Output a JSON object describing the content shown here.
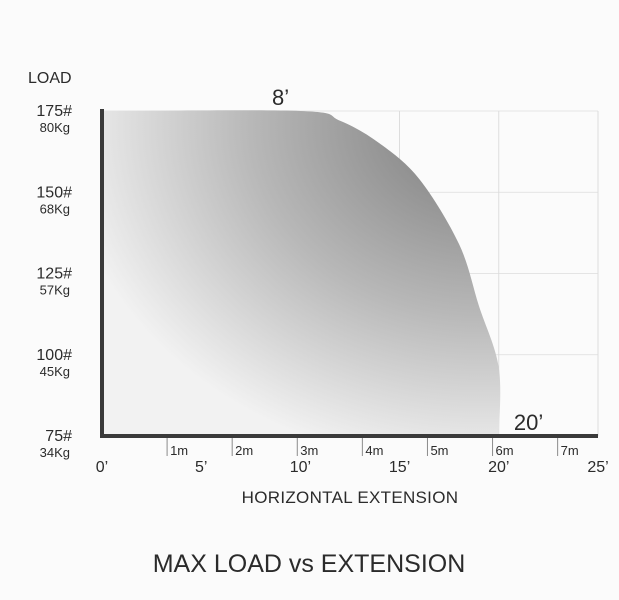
{
  "chart_data": {
    "type": "area",
    "ylabel": "LOAD",
    "xlabel": "HORIZONTAL EXTENSION",
    "title": "MAX LOAD vs EXTENSION",
    "y_ticks": [
      {
        "value": 175,
        "label": "175#",
        "sublabel": "80Kg"
      },
      {
        "value": 150,
        "label": "150#",
        "sublabel": "68Kg"
      },
      {
        "value": 125,
        "label": "125#",
        "sublabel": "57Kg"
      },
      {
        "value": 100,
        "label": "100#",
        "sublabel": "45Kg"
      },
      {
        "value": 75,
        "label": "75#",
        "sublabel": "34Kg"
      }
    ],
    "x_ticks_feet": [
      {
        "value": 0,
        "label": "0’"
      },
      {
        "value": 5,
        "label": "5’"
      },
      {
        "value": 10,
        "label": "10’"
      },
      {
        "value": 15,
        "label": "15’"
      },
      {
        "value": 20,
        "label": "20’"
      },
      {
        "value": 25,
        "label": "25’"
      }
    ],
    "x_ticks_meters": [
      {
        "value": 1,
        "label": "1m"
      },
      {
        "value": 2,
        "label": "2m"
      },
      {
        "value": 3,
        "label": "3m"
      },
      {
        "value": 4,
        "label": "4m"
      },
      {
        "value": 5,
        "label": "5m"
      },
      {
        "value": 6,
        "label": "6m"
      },
      {
        "value": 7,
        "label": "7m"
      }
    ],
    "xlim": [
      0,
      25
    ],
    "ylim": [
      75,
      175
    ],
    "curve": {
      "x": [
        0,
        10,
        12,
        14,
        16,
        18,
        19,
        20,
        20
      ],
      "y": [
        175,
        175,
        172,
        165,
        154,
        134,
        115,
        96,
        75
      ]
    },
    "annotations": [
      {
        "x": 9,
        "y": 175,
        "text": "8’"
      },
      {
        "x": 21.5,
        "y": 75,
        "text": "20’"
      }
    ],
    "grid": true,
    "colors": {
      "fill_dark": "#7d7d7d",
      "fill_light": "#f0f0f0",
      "axis": "#3a3a3a"
    }
  }
}
